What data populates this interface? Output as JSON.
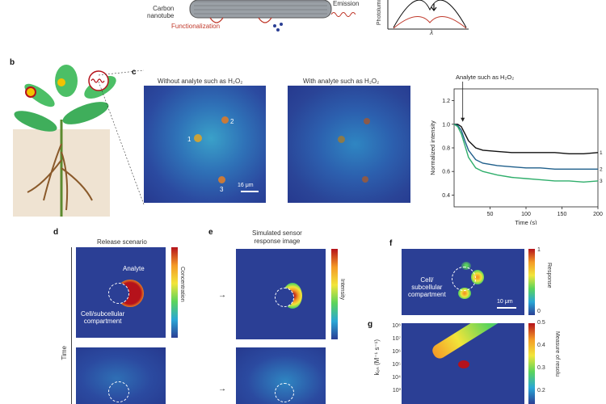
{
  "top": {
    "nanotube_label_line1": "Carbon",
    "nanotube_label_line2": "nanotube",
    "functionalization_label": "Functionalization",
    "emission_label": "Emission",
    "pl_axis_label": "Photolumi",
    "lambda_label": "λ"
  },
  "panels": {
    "b": "b",
    "c": "c",
    "d": "d",
    "e": "e",
    "f": "f",
    "g": "g"
  },
  "c": {
    "img1_title": "Without analyte such as H₂O₂",
    "img2_title": "With analyte such as H₂O₂",
    "scalebar_label": "16 μm",
    "spot_labels": [
      "1",
      "2",
      "3"
    ]
  },
  "d": {
    "title": "Release scenario",
    "analyte_label": "Analyte",
    "cell_label_line1": "Cell/subcellular",
    "cell_label_line2": "compartment",
    "colorbar_label": "Concentration",
    "time_label": "Time"
  },
  "e": {
    "title_line1": "Simulated sensor",
    "title_line2": "response image",
    "colorbar_label": "Intensity"
  },
  "f": {
    "cell_label_line1": "Cell/",
    "cell_label_line2": "subcellular",
    "cell_label_line3": "compartment",
    "scalebar_label": "10 μm",
    "colorbar_label": "Response",
    "cbar_max": "1",
    "cbar_min": "0"
  },
  "g": {
    "ylabel": "kₒₙ (M⁻¹ s⁻¹)",
    "yticks": [
      "10⁸",
      "10⁷",
      "10⁶",
      "10⁵",
      "10⁴",
      "10³"
    ],
    "colorbar_label": "Measure of resolu",
    "cbar_ticks": [
      "0.5",
      "0.4",
      "0.3",
      "0.2"
    ]
  },
  "chart_data": {
    "type": "line",
    "title": "",
    "annotation": "Analyte such as H₂O₂",
    "xlabel": "Time (s)",
    "ylabel": "Normalized intensity",
    "xlim": [
      0,
      200
    ],
    "ylim": [
      0.3,
      1.3
    ],
    "xticks": [
      50,
      100,
      150,
      200
    ],
    "yticks": [
      0.4,
      0.6,
      0.8,
      1.0,
      1.2
    ],
    "series_end_labels": [
      "1",
      "2",
      "3"
    ],
    "colors": [
      "#111111",
      "#1f5f8b",
      "#2fae6b"
    ],
    "series": [
      {
        "x": [
          0,
          5,
          10,
          15,
          20,
          30,
          40,
          60,
          80,
          100,
          120,
          140,
          160,
          180,
          200
        ],
        "values": [
          1.0,
          1.0,
          0.98,
          0.92,
          0.86,
          0.8,
          0.78,
          0.77,
          0.76,
          0.76,
          0.76,
          0.76,
          0.75,
          0.75,
          0.76
        ]
      },
      {
        "x": [
          0,
          5,
          10,
          15,
          20,
          30,
          40,
          60,
          80,
          100,
          120,
          140,
          160,
          180,
          200
        ],
        "values": [
          1.0,
          0.99,
          0.95,
          0.86,
          0.78,
          0.7,
          0.67,
          0.65,
          0.64,
          0.63,
          0.63,
          0.62,
          0.62,
          0.62,
          0.62
        ]
      },
      {
        "x": [
          0,
          5,
          10,
          15,
          20,
          30,
          40,
          60,
          80,
          100,
          120,
          140,
          160,
          180,
          200
        ],
        "values": [
          1.0,
          0.98,
          0.92,
          0.82,
          0.72,
          0.63,
          0.6,
          0.57,
          0.55,
          0.54,
          0.53,
          0.52,
          0.52,
          0.51,
          0.52
        ]
      }
    ]
  }
}
